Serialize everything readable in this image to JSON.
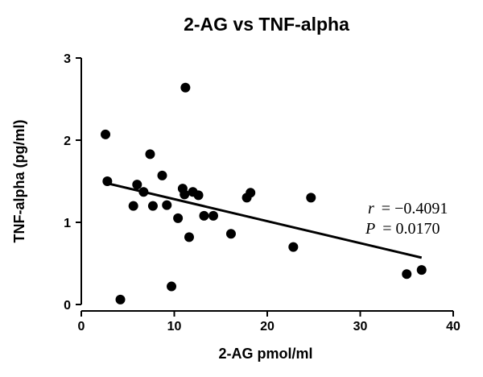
{
  "chart_data": {
    "type": "scatter",
    "title": "2-AG vs TNF-alpha",
    "xlabel": "2-AG pmol/ml",
    "ylabel": "TNF-alpha (pg/ml)",
    "xlim": [
      0,
      40
    ],
    "ylim": [
      0,
      3
    ],
    "xticks": [
      0,
      10,
      20,
      30,
      40
    ],
    "yticks": [
      0,
      1,
      2,
      3
    ],
    "grid": false,
    "points": [
      {
        "x": 2.6,
        "y": 2.07
      },
      {
        "x": 2.8,
        "y": 1.5
      },
      {
        "x": 4.2,
        "y": 0.06
      },
      {
        "x": 5.6,
        "y": 1.2
      },
      {
        "x": 6.0,
        "y": 1.46
      },
      {
        "x": 6.7,
        "y": 1.37
      },
      {
        "x": 7.4,
        "y": 1.83
      },
      {
        "x": 7.7,
        "y": 1.2
      },
      {
        "x": 8.7,
        "y": 1.57
      },
      {
        "x": 9.2,
        "y": 1.21
      },
      {
        "x": 9.7,
        "y": 0.22
      },
      {
        "x": 10.4,
        "y": 1.05
      },
      {
        "x": 10.9,
        "y": 1.41
      },
      {
        "x": 11.1,
        "y": 1.34
      },
      {
        "x": 11.2,
        "y": 2.64
      },
      {
        "x": 11.6,
        "y": 0.82
      },
      {
        "x": 12.0,
        "y": 1.37
      },
      {
        "x": 12.6,
        "y": 1.33
      },
      {
        "x": 13.2,
        "y": 1.08
      },
      {
        "x": 14.2,
        "y": 1.08
      },
      {
        "x": 16.1,
        "y": 0.86
      },
      {
        "x": 17.8,
        "y": 1.3
      },
      {
        "x": 18.2,
        "y": 1.36
      },
      {
        "x": 22.8,
        "y": 0.7
      },
      {
        "x": 24.7,
        "y": 1.3
      },
      {
        "x": 35.0,
        "y": 0.37
      },
      {
        "x": 36.6,
        "y": 0.42
      }
    ],
    "regression": {
      "x1": 2.6,
      "y1": 1.48,
      "x2": 36.6,
      "y2": 0.57
    },
    "annotations": {
      "r_symbol": "r",
      "r_value": "= −0.4091",
      "p_symbol": "P",
      "p_value": "= 0.0170"
    }
  }
}
